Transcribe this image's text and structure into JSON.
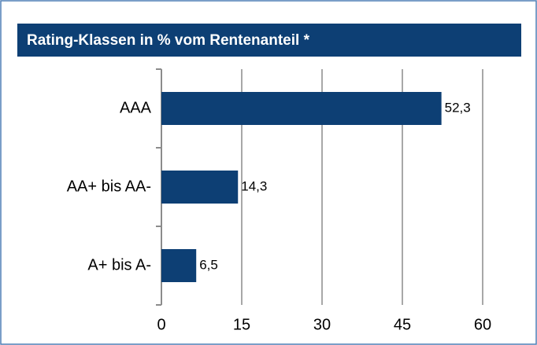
{
  "chart_data": {
    "type": "barh",
    "title": "Rating-Klassen in % vom Rentenanteil *",
    "categories": [
      "AAA",
      "AA+ bis AA-",
      "A+ bis A-"
    ],
    "values": [
      52.3,
      14.3,
      6.5
    ],
    "value_labels": [
      "52,3",
      "14,3",
      "6,5"
    ],
    "color": "#0d3f74",
    "xlim": [
      0,
      60
    ],
    "xticks": [
      0,
      15,
      30,
      45,
      60
    ],
    "grid": true
  }
}
